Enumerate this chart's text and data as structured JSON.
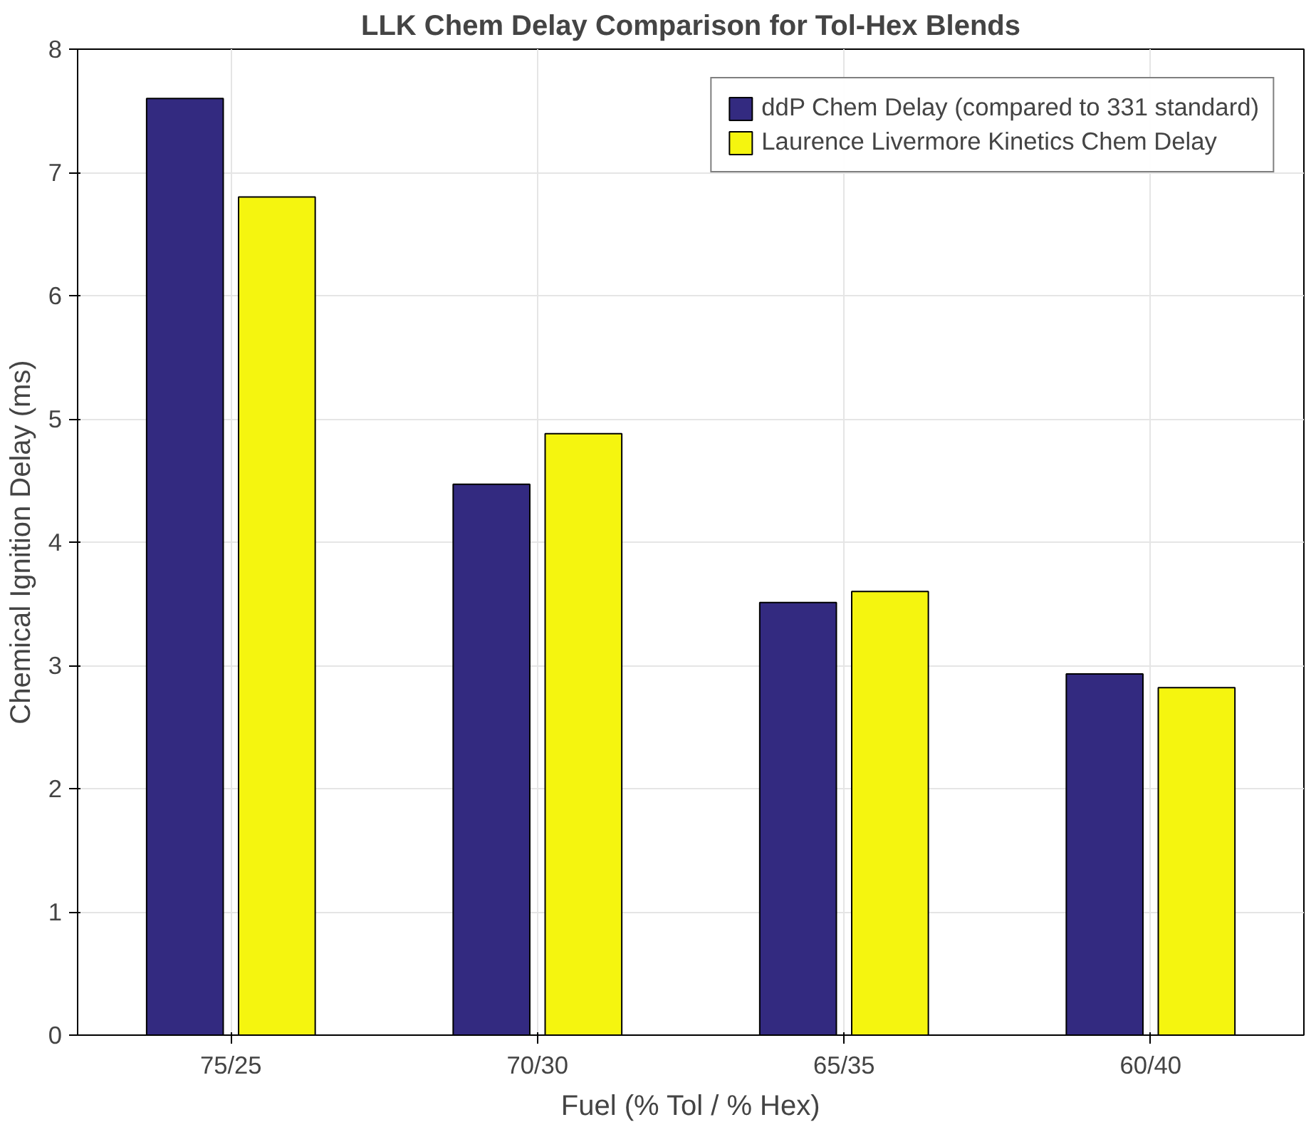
{
  "chart_data": {
    "type": "bar",
    "title": "LLK Chem Delay Comparison for Tol-Hex Blends",
    "xlabel": "Fuel (% Tol / % Hex)",
    "ylabel": "Chemical Ignition Delay (ms)",
    "categories": [
      "75/25",
      "70/30",
      "65/35",
      "60/40"
    ],
    "series": [
      {
        "name": "ddP Chem Delay (compared to 331 standard)",
        "color": "#332a80",
        "values": [
          7.6,
          4.47,
          3.51,
          2.93
        ]
      },
      {
        "name": "Laurence Livermore Kinetics Chem Delay",
        "color": "#f5f50f",
        "values": [
          6.8,
          4.88,
          3.6,
          2.82
        ]
      }
    ],
    "ylim": [
      0,
      8
    ],
    "yticks": [
      0,
      1,
      2,
      3,
      4,
      5,
      6,
      7,
      8
    ],
    "grid": true,
    "legend": "top right"
  }
}
